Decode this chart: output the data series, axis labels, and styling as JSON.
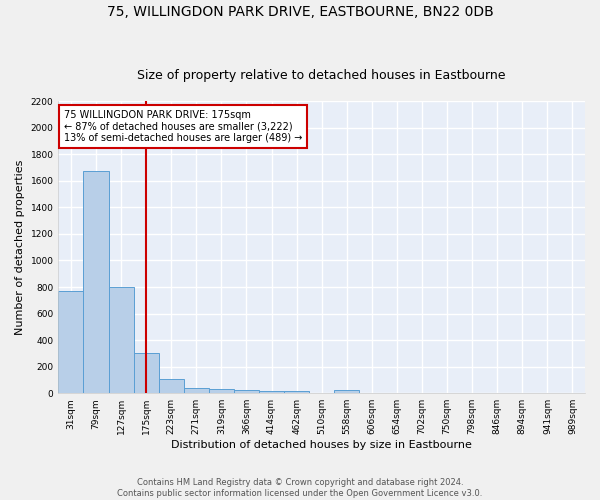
{
  "title": "75, WILLINGDON PARK DRIVE, EASTBOURNE, BN22 0DB",
  "subtitle": "Size of property relative to detached houses in Eastbourne",
  "xlabel": "Distribution of detached houses by size in Eastbourne",
  "ylabel": "Number of detached properties",
  "footer": "Contains HM Land Registry data © Crown copyright and database right 2024.\nContains public sector information licensed under the Open Government Licence v3.0.",
  "categories": [
    "31sqm",
    "79sqm",
    "127sqm",
    "175sqm",
    "223sqm",
    "271sqm",
    "319sqm",
    "366sqm",
    "414sqm",
    "462sqm",
    "510sqm",
    "558sqm",
    "606sqm",
    "654sqm",
    "702sqm",
    "750sqm",
    "798sqm",
    "846sqm",
    "894sqm",
    "941sqm",
    "989sqm"
  ],
  "values": [
    770,
    1675,
    800,
    300,
    110,
    40,
    30,
    25,
    20,
    20,
    0,
    25,
    0,
    0,
    0,
    0,
    0,
    0,
    0,
    0,
    0
  ],
  "bar_color": "#b8cfe8",
  "bar_edge_color": "#5a9fd4",
  "vline_x": 3,
  "vline_color": "#cc0000",
  "annotation_text": "75 WILLINGDON PARK DRIVE: 175sqm\n← 87% of detached houses are smaller (3,222)\n13% of semi-detached houses are larger (489) →",
  "annotation_box_color": "#ffffff",
  "annotation_box_edge": "#cc0000",
  "ylim": [
    0,
    2200
  ],
  "yticks": [
    0,
    200,
    400,
    600,
    800,
    1000,
    1200,
    1400,
    1600,
    1800,
    2000,
    2200
  ],
  "bg_color": "#e8eef8",
  "grid_color": "#ffffff",
  "title_fontsize": 10,
  "subtitle_fontsize": 9,
  "tick_fontsize": 6.5,
  "ylabel_fontsize": 8,
  "xlabel_fontsize": 8,
  "footer_fontsize": 6,
  "annotation_fontsize": 7
}
